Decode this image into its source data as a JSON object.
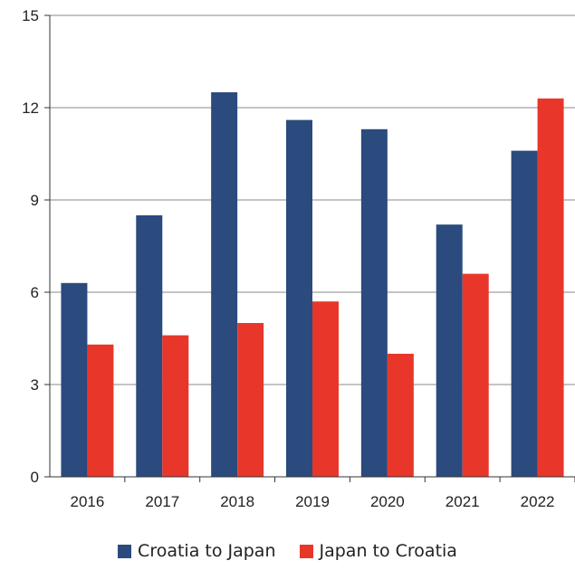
{
  "chart_data": {
    "type": "bar",
    "categories": [
      "2016",
      "2017",
      "2018",
      "2019",
      "2020",
      "2021",
      "2022"
    ],
    "series": [
      {
        "name": "Croatia to Japan",
        "color": "#2b4a7e",
        "values": [
          6.3,
          8.5,
          12.5,
          11.6,
          11.3,
          8.2,
          10.6
        ]
      },
      {
        "name": "Japan to Croatia",
        "color": "#e8372a",
        "values": [
          4.3,
          4.6,
          5.0,
          5.7,
          4.0,
          6.6,
          12.3
        ]
      }
    ],
    "ylim": [
      0,
      15
    ],
    "yticks": [
      "0",
      "3",
      "6",
      "9",
      "12",
      "15"
    ],
    "grid": true,
    "legend": "bottom",
    "title": "",
    "xlabel": "",
    "ylabel": ""
  }
}
